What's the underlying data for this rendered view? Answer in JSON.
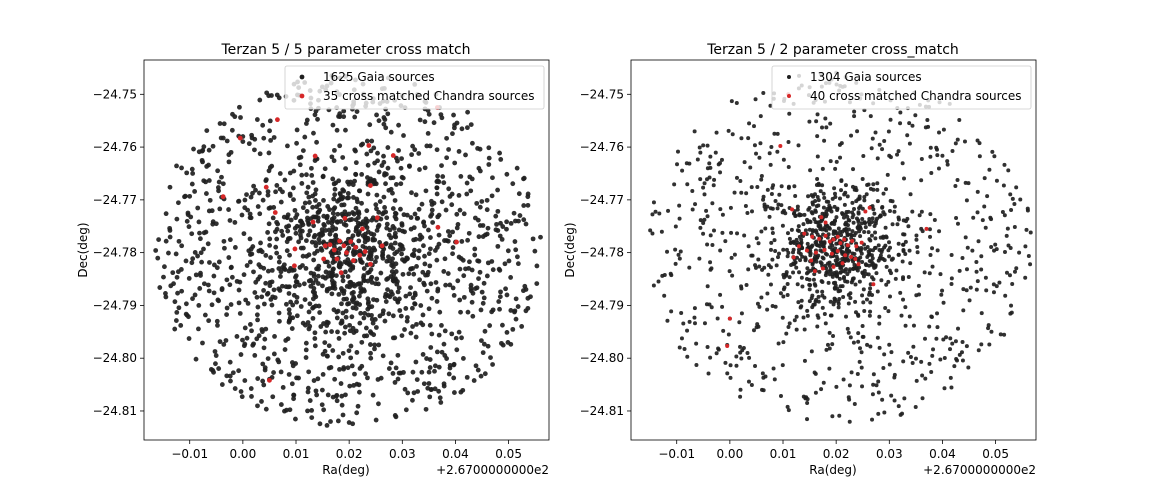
{
  "chart_data": [
    {
      "type": "scatter",
      "title": "Terzan 5 / 5 parameter cross match",
      "xlabel": "Ra(deg)",
      "ylabel": "Dec(deg)",
      "offset_text": "+2.6700000000e2",
      "x_offset": 267.0,
      "xlim": [
        -0.0186,
        0.0576
      ],
      "ylim": [
        -24.8155,
        -24.7435
      ],
      "xticks": [
        -0.01,
        0.0,
        0.01,
        0.02,
        0.03,
        0.04,
        0.05
      ],
      "xtick_labels": [
        "−0.01",
        "0.00",
        "0.01",
        "0.02",
        "0.03",
        "0.04",
        "0.05"
      ],
      "yticks": [
        -24.75,
        -24.76,
        -24.77,
        -24.78,
        -24.79,
        -24.8,
        -24.81
      ],
      "ytick_labels": [
        "−24.75",
        "−24.76",
        "−24.77",
        "−24.78",
        "−24.79",
        "−24.80",
        "−24.81"
      ],
      "legend_position": "top-right",
      "grid": false,
      "field": {
        "center": [
          0.0196,
          -24.7795
        ],
        "radius_x": 0.0365,
        "radius_y": 0.0335,
        "core_sigma": [
          0.009,
          0.0075
        ],
        "core_fraction": 0.3
      },
      "series": [
        {
          "name": "1625 Gaia sources",
          "count": 1625,
          "color": "#1f1f1f",
          "sample_points": [
            [
              0.0,
              -24.758
            ],
            [
              -0.004,
              -24.7695
            ],
            [
              0.037,
              -24.7525
            ],
            [
              0.04,
              -24.778
            ],
            [
              0.005,
              -24.804
            ]
          ]
        },
        {
          "name": "35 cross matched Chandra sources",
          "count": 35,
          "color": "#d62728",
          "points": [
            [
              0.0065,
              -24.7548
            ],
            [
              0.0136,
              -24.7617
            ],
            [
              0.0237,
              -24.7597
            ],
            [
              0.0283,
              -24.7616
            ],
            [
              0.0366,
              -24.7525
            ],
            [
              -0.0005,
              -24.7583
            ],
            [
              0.0044,
              -24.7676
            ],
            [
              0.0061,
              -24.7724
            ],
            [
              0.024,
              -24.7673
            ],
            [
              -0.0037,
              -24.7694
            ],
            [
              0.0132,
              -24.7742
            ],
            [
              0.0192,
              -24.7735
            ],
            [
              0.0225,
              -24.7755
            ],
            [
              0.0253,
              -24.7734
            ],
            [
              0.0367,
              -24.7752
            ],
            [
              0.0402,
              -24.778
            ],
            [
              0.0164,
              -24.7785
            ],
            [
              0.0172,
              -24.7795
            ],
            [
              0.0182,
              -24.7778
            ],
            [
              0.019,
              -24.7787
            ],
            [
              0.0195,
              -24.78
            ],
            [
              0.0203,
              -24.7779
            ],
            [
              0.0212,
              -24.779
            ],
            [
              0.022,
              -24.7805
            ],
            [
              0.023,
              -24.7798
            ],
            [
              0.0262,
              -24.7787
            ],
            [
              0.0152,
              -24.7812
            ],
            [
              0.0177,
              -24.7812
            ],
            [
              0.0208,
              -24.7815
            ],
            [
              0.024,
              -24.7822
            ],
            [
              0.0098,
              -24.7793
            ],
            [
              0.0097,
              -24.7825
            ],
            [
              0.0185,
              -24.7838
            ],
            [
              0.0155,
              -24.7787
            ],
            [
              0.005,
              -24.8042
            ]
          ]
        }
      ]
    },
    {
      "type": "scatter",
      "title": "Terzan 5 / 2 parameter cross_match",
      "xlabel": "Ra(deg)",
      "ylabel": "Dec(deg)",
      "offset_text": "+2.6700000000e2",
      "x_offset": 267.0,
      "xlim": [
        -0.0186,
        0.0576
      ],
      "ylim": [
        -24.8155,
        -24.7435
      ],
      "xticks": [
        -0.01,
        0.0,
        0.01,
        0.02,
        0.03,
        0.04,
        0.05
      ],
      "xtick_labels": [
        "−0.01",
        "0.00",
        "0.01",
        "0.02",
        "0.03",
        "0.04",
        "0.05"
      ],
      "yticks": [
        -24.75,
        -24.76,
        -24.77,
        -24.78,
        -24.79,
        -24.8,
        -24.81
      ],
      "ytick_labels": [
        "−24.75",
        "−24.76",
        "−24.77",
        "−24.78",
        "−24.79",
        "−24.80",
        "−24.81"
      ],
      "legend_position": "top-right",
      "grid": false,
      "field": {
        "center": [
          0.0205,
          -24.779
        ],
        "radius_x": 0.0365,
        "radius_y": 0.0335,
        "core_sigma": [
          0.006,
          0.0055
        ],
        "core_fraction": 0.4
      },
      "series": [
        {
          "name": "1304 Gaia sources",
          "count": 1304,
          "color": "#1f1f1f",
          "sample_points": [
            [
              0.009,
              -24.7575
            ],
            [
              0.0,
              -24.7925
            ],
            [
              -0.0005,
              -24.7975
            ],
            [
              0.0265,
              -24.786
            ],
            [
              0.036,
              -24.7755
            ]
          ]
        },
        {
          "name": "40 cross matched Chandra sources",
          "count": 40,
          "color": "#d62728",
          "points": [
            [
              0.011,
              -24.75
            ],
            [
              0.0095,
              -24.7598
            ],
            [
              0.0117,
              -24.7718
            ],
            [
              0.0172,
              -24.7733
            ],
            [
              0.018,
              -24.7743
            ],
            [
              0.0255,
              -24.7722
            ],
            [
              0.0263,
              -24.7715
            ],
            [
              0.037,
              -24.7755
            ],
            [
              0.014,
              -24.7764
            ],
            [
              0.0155,
              -24.777
            ],
            [
              0.0168,
              -24.7774
            ],
            [
              0.018,
              -24.7768
            ],
            [
              0.0188,
              -24.7779
            ],
            [
              0.0195,
              -24.7775
            ],
            [
              0.0203,
              -24.777
            ],
            [
              0.0208,
              -24.7782
            ],
            [
              0.0215,
              -24.7775
            ],
            [
              0.0222,
              -24.7786
            ],
            [
              0.023,
              -24.7778
            ],
            [
              0.0238,
              -24.7788
            ],
            [
              0.0248,
              -24.7781
            ],
            [
              0.013,
              -24.7788
            ],
            [
              0.0145,
              -24.7796
            ],
            [
              0.0162,
              -24.78
            ],
            [
              0.0178,
              -24.7795
            ],
            [
              0.0192,
              -24.7802
            ],
            [
              0.0203,
              -24.7797
            ],
            [
              0.0217,
              -24.7805
            ],
            [
              0.0228,
              -24.7808
            ],
            [
              0.0236,
              -24.7812
            ],
            [
              0.012,
              -24.7809
            ],
            [
              0.0153,
              -24.7815
            ],
            [
              0.0212,
              -24.782
            ],
            [
              0.0175,
              -24.783
            ],
            [
              0.0242,
              -24.7822
            ],
            [
              0.0195,
              -24.7827
            ],
            [
              0.016,
              -24.7835
            ],
            [
              0.027,
              -24.786
            ],
            [
              0.0,
              -24.7925
            ],
            [
              -0.0005,
              -24.7977
            ]
          ]
        }
      ]
    }
  ]
}
